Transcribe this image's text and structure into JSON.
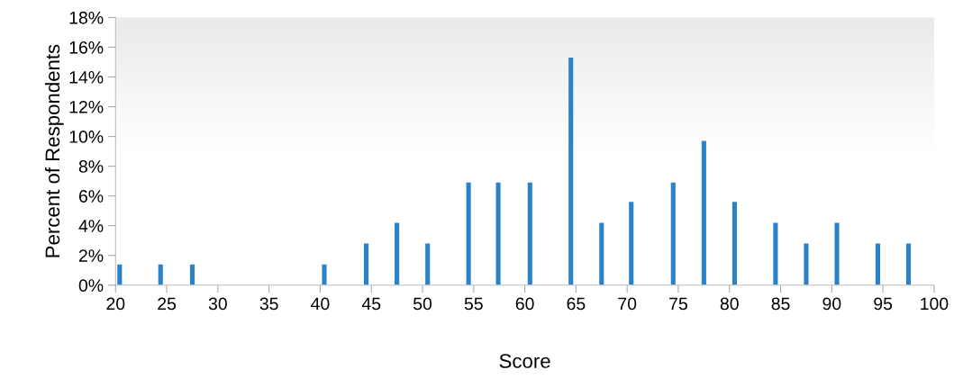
{
  "chart_data": {
    "type": "bar",
    "xlabel": "Score",
    "ylabel": "Percent of Respondents",
    "x": [
      20.4,
      24.4,
      27.5,
      40.4,
      44.5,
      47.5,
      50.5,
      54.5,
      57.4,
      60.5,
      64.5,
      67.5,
      70.4,
      74.5,
      77.5,
      80.5,
      84.5,
      87.5,
      90.5,
      94.5,
      97.5
    ],
    "values": [
      1.4,
      1.4,
      1.4,
      1.4,
      2.8,
      4.2,
      2.8,
      6.9,
      6.9,
      6.9,
      15.3,
      4.2,
      5.6,
      6.9,
      9.7,
      5.6,
      4.2,
      2.8,
      4.2,
      2.8,
      2.8
    ],
    "color": "#2b82c9",
    "xlim": [
      20,
      100
    ],
    "xticks": [
      20,
      25,
      30,
      35,
      40,
      45,
      50,
      55,
      60,
      65,
      70,
      75,
      80,
      85,
      90,
      95,
      100
    ],
    "ylim": [
      0,
      18
    ],
    "yticks": [
      {
        "value": 0,
        "label": "0%"
      },
      {
        "value": 2,
        "label": "2%"
      },
      {
        "value": 4,
        "label": "4%"
      },
      {
        "value": 6,
        "label": "6%"
      },
      {
        "value": 8,
        "label": "8%"
      },
      {
        "value": 10,
        "label": "10%"
      },
      {
        "value": 12,
        "label": "12%"
      },
      {
        "value": 14,
        "label": "14%"
      },
      {
        "value": 16,
        "label": "16%"
      },
      {
        "value": 18,
        "label": "18%"
      }
    ],
    "grid": false,
    "legend": false
  }
}
